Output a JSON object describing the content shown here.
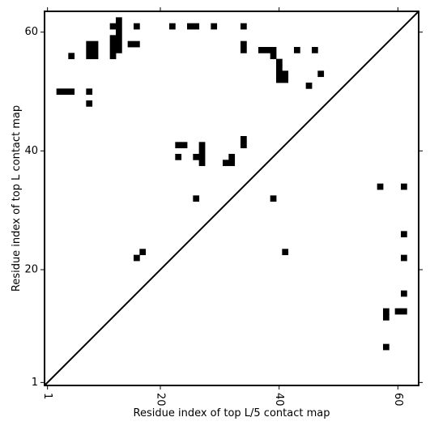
{
  "chart_data": {
    "type": "heatmap",
    "title": "",
    "xlabel": "Residue index of top L/5 contact map",
    "ylabel": "Residue index of top L contact map",
    "xlim": [
      0.5,
      63.5
    ],
    "ylim": [
      0.5,
      63.5
    ],
    "x_ticks": [
      1,
      20,
      40,
      60
    ],
    "y_ticks": [
      1,
      20,
      40,
      60
    ],
    "x_tick_rotation": -90,
    "cell_color": "#000000",
    "diagonal": {
      "from": [
        1,
        1
      ],
      "to": [
        63,
        63
      ],
      "color": "#000000"
    },
    "upper_contacts": [
      [
        13,
        62
      ],
      [
        13,
        61
      ],
      [
        12,
        61
      ],
      [
        13,
        60
      ],
      [
        16,
        61
      ],
      [
        22,
        61
      ],
      [
        25,
        61
      ],
      [
        26,
        61
      ],
      [
        29,
        61
      ],
      [
        34,
        61
      ],
      [
        8,
        58
      ],
      [
        9,
        58
      ],
      [
        12,
        59
      ],
      [
        13,
        59
      ],
      [
        12,
        58
      ],
      [
        13,
        58
      ],
      [
        15,
        58
      ],
      [
        16,
        58
      ],
      [
        34,
        58
      ],
      [
        8,
        57
      ],
      [
        9,
        57
      ],
      [
        8,
        56
      ],
      [
        9,
        56
      ],
      [
        12,
        57
      ],
      [
        13,
        57
      ],
      [
        5,
        56
      ],
      [
        12,
        56
      ],
      [
        34,
        57
      ],
      [
        37,
        57
      ],
      [
        38,
        57
      ],
      [
        39,
        57
      ],
      [
        39,
        56
      ],
      [
        43,
        57
      ],
      [
        46,
        57
      ],
      [
        40,
        55
      ],
      [
        40,
        54
      ],
      [
        40,
        53
      ],
      [
        41,
        53
      ],
      [
        40,
        52
      ],
      [
        41,
        52
      ],
      [
        47,
        53
      ],
      [
        45,
        51
      ],
      [
        3,
        50
      ],
      [
        4,
        50
      ],
      [
        5,
        50
      ],
      [
        8,
        50
      ],
      [
        8,
        48
      ],
      [
        23,
        41
      ],
      [
        24,
        41
      ],
      [
        27,
        41
      ],
      [
        34,
        42
      ],
      [
        34,
        41
      ],
      [
        23,
        39
      ],
      [
        26,
        39
      ],
      [
        27,
        40
      ],
      [
        27,
        39
      ],
      [
        27,
        38
      ],
      [
        31,
        38
      ],
      [
        32,
        39
      ],
      [
        32,
        38
      ]
    ],
    "lower_contacts": [
      [
        26,
        32
      ],
      [
        39,
        32
      ],
      [
        57,
        34
      ],
      [
        61,
        34
      ],
      [
        61,
        26
      ],
      [
        61,
        22
      ],
      [
        41,
        23
      ],
      [
        17,
        23
      ],
      [
        16,
        22
      ],
      [
        61,
        16
      ],
      [
        58,
        13
      ],
      [
        58,
        12
      ],
      [
        60,
        13
      ],
      [
        61,
        13
      ],
      [
        58,
        7
      ]
    ]
  }
}
